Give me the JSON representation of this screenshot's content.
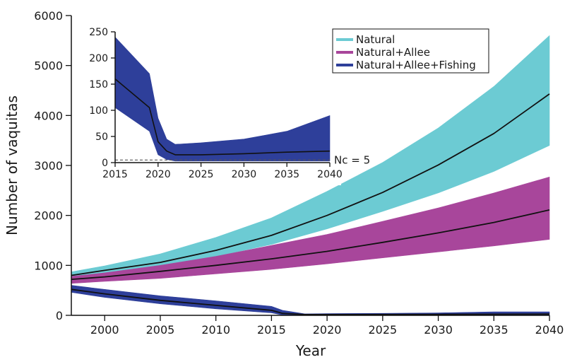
{
  "chart_data": [
    {
      "type": "line",
      "title": "",
      "xlabel": "Year",
      "ylabel": "Number of vaquitas",
      "xlim": [
        1997,
        2040
      ],
      "ylim": [
        0,
        6000
      ],
      "xticks": [
        2000,
        2005,
        2010,
        2015,
        2020,
        2025,
        2030,
        2035,
        2040
      ],
      "yticks": [
        0,
        1000,
        2000,
        3000,
        4000,
        5000,
        6000
      ],
      "grid": false,
      "legend_position": "top-right",
      "legend": [
        "Natural",
        "Natural+Allee",
        "Natural+Allee+Fishing"
      ],
      "series": [
        {
          "name": "Natural",
          "color": "#6ccbd3",
          "x": [
            1997,
            2000,
            2005,
            2010,
            2015,
            2020,
            2025,
            2030,
            2035,
            2040
          ],
          "median": [
            800,
            900,
            1060,
            1300,
            1600,
            2000,
            2460,
            3010,
            3640,
            4430
          ],
          "lower": [
            760,
            850,
            990,
            1180,
            1420,
            1730,
            2080,
            2450,
            2880,
            3400
          ],
          "upper": [
            870,
            990,
            1230,
            1560,
            1950,
            2480,
            3060,
            3750,
            4580,
            5600
          ]
        },
        {
          "name": "Natural+Allee",
          "color": "#a8469b",
          "x": [
            1997,
            2000,
            2005,
            2010,
            2015,
            2020,
            2025,
            2030,
            2035,
            2040
          ],
          "median": [
            720,
            770,
            880,
            1000,
            1130,
            1280,
            1460,
            1650,
            1860,
            2110
          ],
          "lower": [
            640,
            680,
            740,
            830,
            920,
            1030,
            1150,
            1270,
            1390,
            1520
          ],
          "upper": [
            780,
            850,
            1000,
            1180,
            1400,
            1620,
            1880,
            2150,
            2450,
            2770
          ]
        },
        {
          "name": "Natural+Allee+Fishing",
          "color": "#2e3f9a",
          "x": [
            1997,
            2000,
            2005,
            2010,
            2015,
            2016,
            2018,
            2020,
            2025,
            2030,
            2035,
            2040
          ],
          "median": [
            520,
            430,
            300,
            200,
            100,
            40,
            15,
            15,
            17,
            20,
            22,
            25
          ],
          "lower": [
            460,
            360,
            230,
            130,
            50,
            5,
            0,
            0,
            0,
            0,
            0,
            0
          ],
          "upper": [
            600,
            520,
            390,
            290,
            180,
            100,
            30,
            35,
            40,
            50,
            70,
            70
          ]
        }
      ]
    },
    {
      "type": "line",
      "title": "",
      "xlabel": "",
      "ylabel": "",
      "xlim": [
        2015,
        2040
      ],
      "ylim": [
        0,
        250
      ],
      "xticks": [
        2015,
        2020,
        2025,
        2030,
        2035,
        2040
      ],
      "yticks": [
        0,
        50,
        100,
        150,
        200,
        250
      ],
      "grid": false,
      "series": [
        {
          "name": "Natural+Allee+Fishing",
          "color": "#2e3f9a",
          "x": [
            2015,
            2019,
            2020,
            2021,
            2022,
            2025,
            2030,
            2035,
            2040
          ],
          "median": [
            160,
            105,
            40,
            22,
            15,
            15,
            17,
            20,
            22
          ],
          "lower": [
            105,
            60,
            15,
            6,
            3,
            3,
            3,
            3,
            3
          ],
          "upper": [
            240,
            170,
            85,
            45,
            35,
            38,
            45,
            60,
            90
          ]
        }
      ],
      "reference_line": {
        "y": 5,
        "label": "Nc = 5",
        "style": "dashed"
      }
    }
  ]
}
